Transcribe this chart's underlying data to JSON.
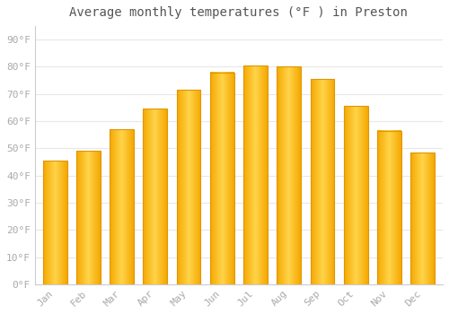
{
  "months": [
    "Jan",
    "Feb",
    "Mar",
    "Apr",
    "May",
    "Jun",
    "Jul",
    "Aug",
    "Sep",
    "Oct",
    "Nov",
    "Dec"
  ],
  "values": [
    45.5,
    49.0,
    57.0,
    64.5,
    71.5,
    78.0,
    80.5,
    80.0,
    75.5,
    65.5,
    56.5,
    48.5
  ],
  "title": "Average monthly temperatures (°F ) in Preston",
  "ylabel_ticks": [
    "0°F",
    "10°F",
    "20°F",
    "30°F",
    "40°F",
    "50°F",
    "60°F",
    "70°F",
    "80°F",
    "90°F"
  ],
  "ytick_values": [
    0,
    10,
    20,
    30,
    40,
    50,
    60,
    70,
    80,
    90
  ],
  "ylim": [
    0,
    95
  ],
  "background_color": "#ffffff",
  "grid_color": "#e8e8e8",
  "bar_color_left": "#F5A800",
  "bar_color_center": "#FFD44A",
  "bar_color_right": "#F5A800",
  "bar_edge_color": "#E09500",
  "title_fontsize": 10,
  "tick_fontsize": 8,
  "tick_color": "#aaaaaa",
  "title_color": "#555555"
}
